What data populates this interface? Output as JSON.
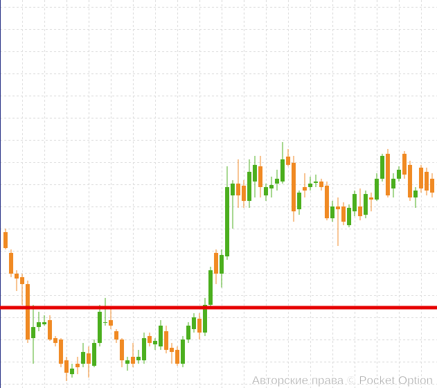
{
  "chart_data": {
    "type": "candlestick",
    "watermark": "Авторские права © Pocket Option",
    "open": [
      225,
      195,
      165,
      160,
      150,
      72,
      88,
      92,
      98,
      72,
      70,
      40,
      20,
      35,
      35,
      50,
      32,
      65,
      95,
      98,
      82,
      70,
      35,
      45,
      40,
      40,
      75,
      63,
      60,
      82,
      58,
      55,
      35,
      70,
      85,
      100,
      80,
      120,
      195,
      165,
      190,
      278,
      295,
      292,
      270,
      298,
      320,
      278,
      288,
      295,
      298,
      334,
      325,
      258,
      290,
      290,
      296,
      298,
      292,
      245,
      262,
      262,
      235,
      255,
      262,
      250,
      275,
      272,
      302,
      338,
      288,
      302,
      338,
      322,
      275,
      318,
      312,
      302
    ],
    "high": [
      230,
      200,
      170,
      165,
      155,
      120,
      110,
      105,
      105,
      75,
      72,
      45,
      35,
      45,
      65,
      60,
      70,
      120,
      130,
      115,
      85,
      72,
      45,
      65,
      55,
      80,
      80,
      72,
      98,
      90,
      65,
      60,
      75,
      95,
      108,
      108,
      130,
      175,
      200,
      200,
      320,
      300,
      330,
      300,
      330,
      335,
      335,
      295,
      305,
      315,
      355,
      345,
      335,
      285,
      310,
      305,
      308,
      302,
      298,
      270,
      275,
      268,
      265,
      285,
      288,
      285,
      282,
      310,
      338,
      345,
      310,
      320,
      342,
      328,
      290,
      322,
      318,
      310
    ],
    "low": [
      200,
      160,
      140,
      120,
      65,
      35,
      82,
      90,
      68,
      60,
      30,
      10,
      15,
      20,
      30,
      15,
      30,
      60,
      90,
      85,
      65,
      30,
      25,
      30,
      35,
      35,
      60,
      55,
      55,
      50,
      35,
      32,
      30,
      65,
      80,
      70,
      75,
      115,
      150,
      145,
      185,
      230,
      260,
      260,
      260,
      275,
      275,
      270,
      275,
      285,
      295,
      320,
      240,
      250,
      275,
      285,
      290,
      285,
      242,
      240,
      205,
      235,
      232,
      248,
      242,
      245,
      255,
      270,
      298,
      275,
      275,
      298,
      302,
      270,
      260,
      282,
      278,
      275
    ],
    "close": [
      202,
      165,
      158,
      150,
      70,
      88,
      95,
      95,
      70,
      65,
      35,
      22,
      28,
      30,
      52,
      35,
      65,
      110,
      95,
      90,
      70,
      40,
      40,
      35,
      45,
      72,
      65,
      68,
      90,
      55,
      52,
      35,
      70,
      90,
      102,
      80,
      120,
      170,
      165,
      192,
      290,
      295,
      278,
      270,
      312,
      322,
      290,
      290,
      293,
      302,
      330,
      322,
      255,
      282,
      285,
      295,
      298,
      290,
      245,
      262,
      258,
      240,
      260,
      280,
      248,
      280,
      272,
      302,
      335,
      278,
      302,
      315,
      308,
      275,
      285,
      288,
      285,
      282
    ],
    "up_color": "#4caf1f",
    "down_color": "#f08a24",
    "level": 116,
    "level_color": "#e60000",
    "ylim": [
      0,
      560
    ],
    "grid": true
  }
}
